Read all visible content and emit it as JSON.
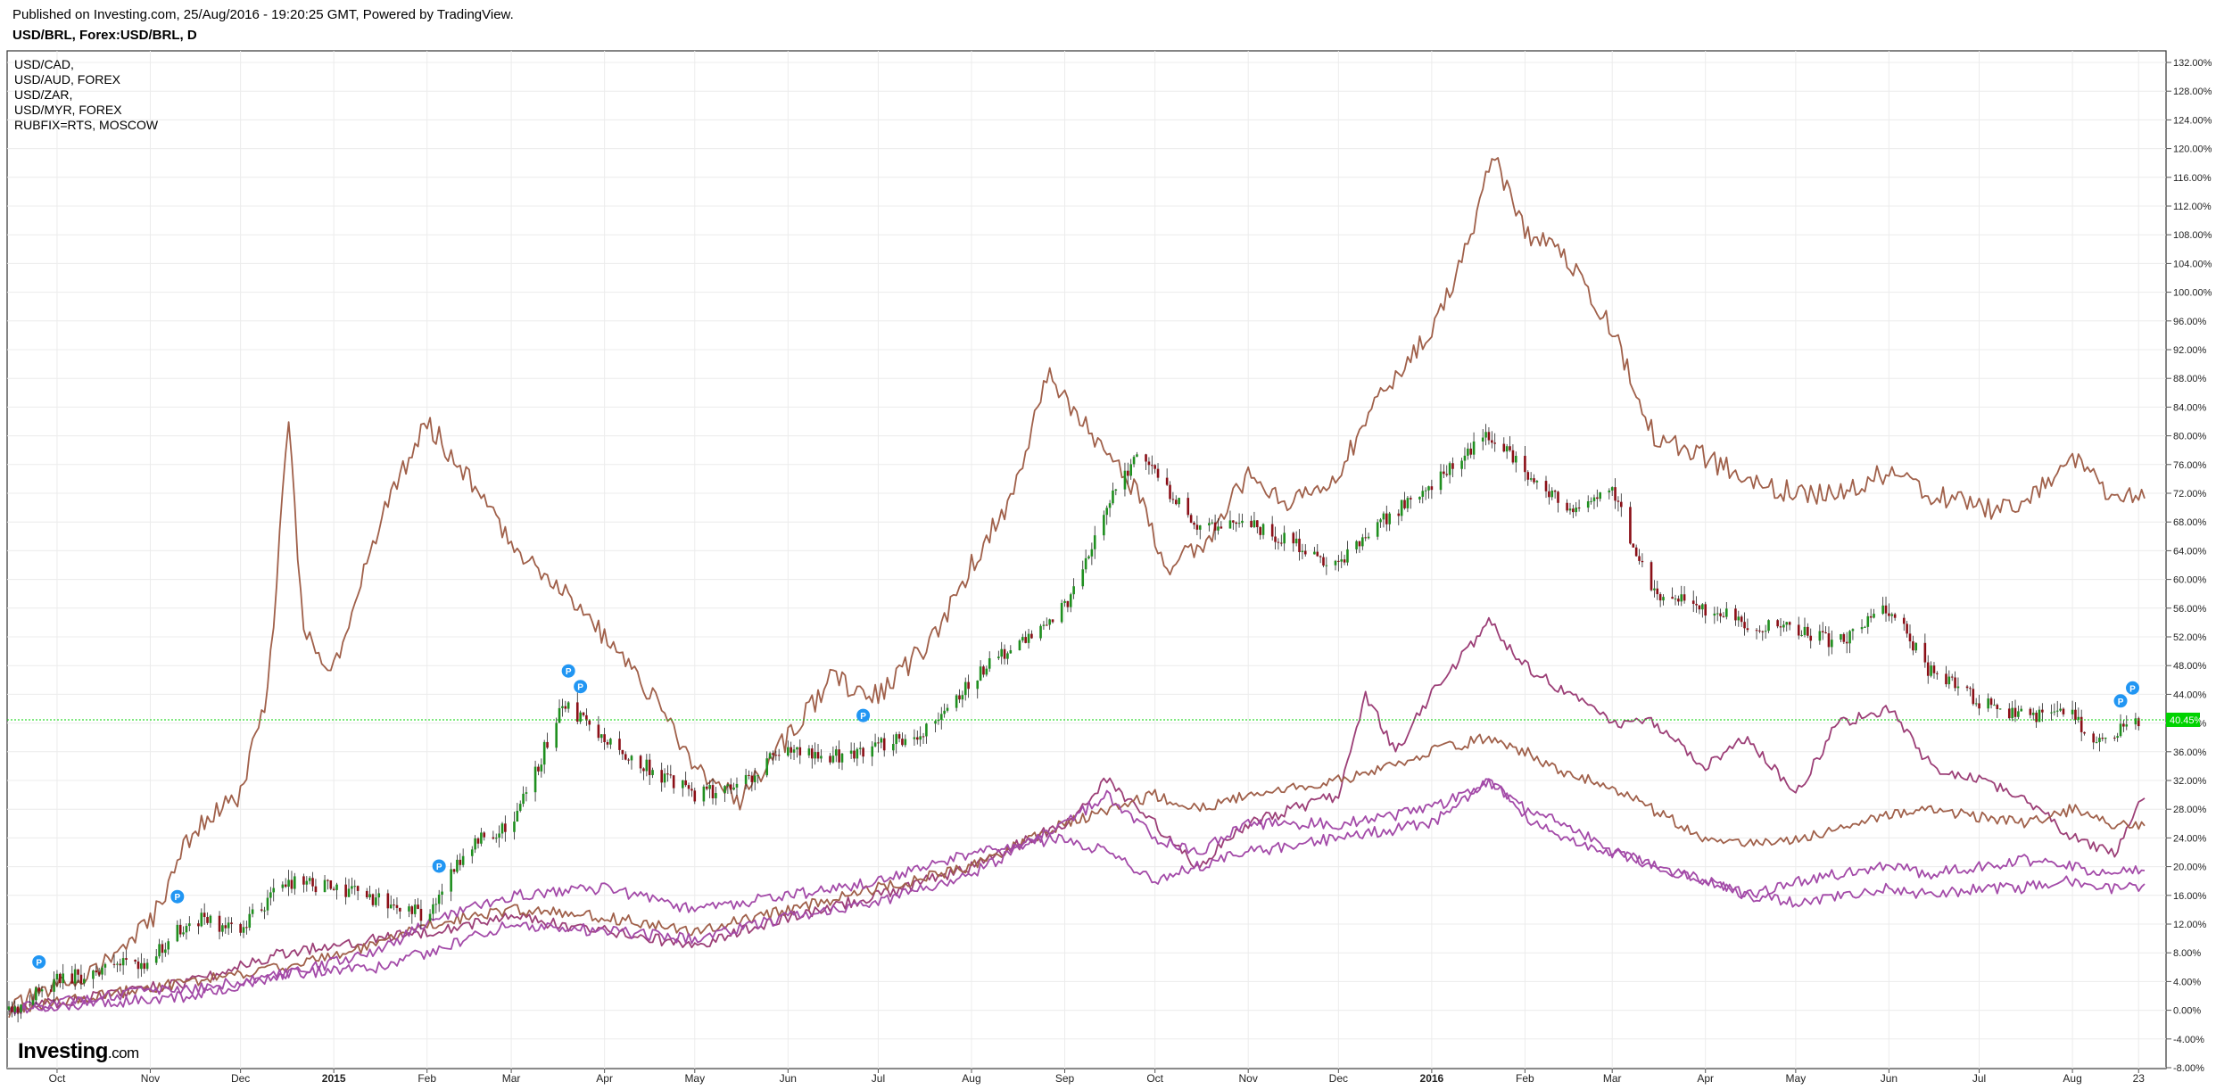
{
  "header": {
    "published": "Published on Investing.com, 25/Aug/2016 - 19:20:25 GMT, Powered by TradingView.",
    "symbol": "USD/BRL, Forex:USD/BRL, D"
  },
  "legend": [
    "USD/CAD,",
    "USD/AUD, FOREX",
    "USD/ZAR,",
    "USD/MYR, FOREX",
    "RUBFIX=RTS, MOSCOW"
  ],
  "logo": {
    "brand": "Investing",
    "suffix": ".com"
  },
  "markers": {
    "label": "P"
  },
  "price_label": "40.45%",
  "colors": {
    "brown": "#a0604a",
    "plum": "#9c3f77",
    "purple": "#a34aa8",
    "up": "#1f8f1f",
    "down": "#8b0f17",
    "current": "#00d300",
    "marker": "#2196f3"
  },
  "chart_data": {
    "type": "line",
    "title": "USD/BRL, Forex:USD/BRL, D",
    "y_axis": {
      "unit": "%",
      "min": -8,
      "max": 132,
      "step": 4,
      "tick_labels": [
        "132.00%",
        "128.00%",
        "124.00%",
        "120.00%",
        "116.00%",
        "112.00%",
        "108.00%",
        "104.00%",
        "100.00%",
        "96.00%",
        "92.00%",
        "88.00%",
        "84.00%",
        "80.00%",
        "76.00%",
        "72.00%",
        "68.00%",
        "64.00%",
        "60.00%",
        "56.00%",
        "52.00%",
        "48.00%",
        "44.00%",
        "40.00%",
        "36.00%",
        "32.00%",
        "28.00%",
        "24.00%",
        "20.00%",
        "16.00%",
        "12.00%",
        "8.00%",
        "4.00%",
        "0.00%",
        "-4.00%",
        "-8.00%"
      ]
    },
    "x_axis": {
      "start": "2014-09-15",
      "end": "2016-08-25",
      "tick_labels": [
        {
          "label": "Oct",
          "date": "2014-10-01"
        },
        {
          "label": "Nov",
          "date": "2014-11-01"
        },
        {
          "label": "Dec",
          "date": "2014-12-01"
        },
        {
          "label": "2015",
          "date": "2015-01-01",
          "bold": true
        },
        {
          "label": "Feb",
          "date": "2015-02-01"
        },
        {
          "label": "Mar",
          "date": "2015-03-01"
        },
        {
          "label": "Apr",
          "date": "2015-04-01"
        },
        {
          "label": "May",
          "date": "2015-05-01"
        },
        {
          "label": "Jun",
          "date": "2015-06-01"
        },
        {
          "label": "Jul",
          "date": "2015-07-01"
        },
        {
          "label": "Aug",
          "date": "2015-08-01"
        },
        {
          "label": "Sep",
          "date": "2015-09-01"
        },
        {
          "label": "Oct",
          "date": "2015-10-01"
        },
        {
          "label": "Nov",
          "date": "2015-11-01"
        },
        {
          "label": "Dec",
          "date": "2015-12-01"
        },
        {
          "label": "2016",
          "date": "2016-01-01",
          "bold": true
        },
        {
          "label": "Feb",
          "date": "2016-02-01"
        },
        {
          "label": "Mar",
          "date": "2016-03-01"
        },
        {
          "label": "Apr",
          "date": "2016-04-01"
        },
        {
          "label": "May",
          "date": "2016-05-01"
        },
        {
          "label": "Jun",
          "date": "2016-06-01"
        },
        {
          "label": "Jul",
          "date": "2016-07-01"
        },
        {
          "label": "Aug",
          "date": "2016-08-01"
        },
        {
          "label": "23",
          "date": "2016-08-23"
        }
      ]
    },
    "grid": true,
    "current_value": 40.45,
    "main_series": {
      "name": "USD/BRL",
      "style": "candlestick",
      "points": [
        [
          "2014-09-15",
          0
        ],
        [
          "2014-10-01",
          4
        ],
        [
          "2014-10-20",
          6
        ],
        [
          "2014-11-01",
          7
        ],
        [
          "2014-11-15",
          13
        ],
        [
          "2014-12-01",
          11
        ],
        [
          "2014-12-15",
          18
        ],
        [
          "2015-01-01",
          17
        ],
        [
          "2015-01-20",
          15
        ],
        [
          "2015-02-01",
          13
        ],
        [
          "2015-02-15",
          23
        ],
        [
          "2015-03-01",
          26
        ],
        [
          "2015-03-10",
          34
        ],
        [
          "2015-03-18",
          43
        ],
        [
          "2015-04-01",
          38
        ],
        [
          "2015-04-15",
          34
        ],
        [
          "2015-05-01",
          30
        ],
        [
          "2015-05-15",
          31
        ],
        [
          "2015-06-01",
          37
        ],
        [
          "2015-06-20",
          35
        ],
        [
          "2015-07-01",
          37
        ],
        [
          "2015-07-15",
          38
        ],
        [
          "2015-08-01",
          46
        ],
        [
          "2015-08-15",
          51
        ],
        [
          "2015-09-01",
          56
        ],
        [
          "2015-09-15",
          70
        ],
        [
          "2015-09-25",
          77
        ],
        [
          "2015-10-01",
          75
        ],
        [
          "2015-10-15",
          67
        ],
        [
          "2015-11-01",
          68
        ],
        [
          "2015-11-15",
          65
        ],
        [
          "2015-12-01",
          62
        ],
        [
          "2015-12-15",
          68
        ],
        [
          "2016-01-01",
          73
        ],
        [
          "2016-01-20",
          80
        ],
        [
          "2016-02-01",
          75
        ],
        [
          "2016-02-15",
          70
        ],
        [
          "2016-03-01",
          72
        ],
        [
          "2016-03-15",
          58
        ],
        [
          "2016-04-01",
          56
        ],
        [
          "2016-04-15",
          54
        ],
        [
          "2016-05-01",
          53
        ],
        [
          "2016-05-15",
          51
        ],
        [
          "2016-06-01",
          56
        ],
        [
          "2016-06-15",
          47
        ],
        [
          "2016-07-01",
          43
        ],
        [
          "2016-07-15",
          41
        ],
        [
          "2016-08-01",
          41
        ],
        [
          "2016-08-10",
          37
        ],
        [
          "2016-08-23",
          40.45
        ]
      ]
    },
    "series": [
      {
        "name": "RUBFIX=RTS, MOSCOW",
        "color": "brown",
        "values": [
          [
            "2014-09-15",
            0
          ],
          [
            "2014-10-15",
            6
          ],
          [
            "2014-11-01",
            12
          ],
          [
            "2014-11-15",
            25
          ],
          [
            "2014-12-01",
            30
          ],
          [
            "2014-12-10",
            44
          ],
          [
            "2014-12-17",
            82
          ],
          [
            "2014-12-22",
            52
          ],
          [
            "2015-01-01",
            48
          ],
          [
            "2015-01-20",
            72
          ],
          [
            "2015-02-01",
            82
          ],
          [
            "2015-02-15",
            74
          ],
          [
            "2015-03-01",
            65
          ],
          [
            "2015-03-20",
            58
          ],
          [
            "2015-04-01",
            52
          ],
          [
            "2015-04-20",
            42
          ],
          [
            "2015-05-01",
            34
          ],
          [
            "2015-05-15",
            29
          ],
          [
            "2015-06-01",
            38
          ],
          [
            "2015-06-15",
            46
          ],
          [
            "2015-07-01",
            44
          ],
          [
            "2015-07-20",
            52
          ],
          [
            "2015-08-01",
            62
          ],
          [
            "2015-08-15",
            72
          ],
          [
            "2015-08-26",
            89
          ],
          [
            "2015-09-10",
            80
          ],
          [
            "2015-09-25",
            72
          ],
          [
            "2015-10-05",
            62
          ],
          [
            "2015-10-20",
            66
          ],
          [
            "2015-11-01",
            75
          ],
          [
            "2015-11-15",
            70
          ],
          [
            "2015-12-01",
            75
          ],
          [
            "2015-12-15",
            86
          ],
          [
            "2016-01-01",
            95
          ],
          [
            "2016-01-15",
            108
          ],
          [
            "2016-01-21",
            120
          ],
          [
            "2016-02-01",
            108
          ],
          [
            "2016-02-15",
            105
          ],
          [
            "2016-03-01",
            95
          ],
          [
            "2016-03-15",
            80
          ],
          [
            "2016-04-01",
            77
          ],
          [
            "2016-04-15",
            74
          ],
          [
            "2016-05-01",
            72
          ],
          [
            "2016-05-15",
            72
          ],
          [
            "2016-06-01",
            75
          ],
          [
            "2016-06-15",
            72
          ],
          [
            "2016-07-01",
            70
          ],
          [
            "2016-07-15",
            70
          ],
          [
            "2016-08-01",
            77
          ],
          [
            "2016-08-15",
            71
          ],
          [
            "2016-08-25",
            72
          ]
        ]
      },
      {
        "name": "USD/ZAR",
        "color": "plum",
        "values": [
          [
            "2014-09-15",
            0
          ],
          [
            "2014-10-15",
            2
          ],
          [
            "2014-11-15",
            4
          ],
          [
            "2014-12-15",
            8
          ],
          [
            "2015-01-15",
            10
          ],
          [
            "2015-02-01",
            11
          ],
          [
            "2015-03-01",
            13
          ],
          [
            "2015-04-01",
            11
          ],
          [
            "2015-05-01",
            9
          ],
          [
            "2015-06-01",
            13
          ],
          [
            "2015-07-01",
            16
          ],
          [
            "2015-08-01",
            20
          ],
          [
            "2015-09-01",
            26
          ],
          [
            "2015-09-15",
            32
          ],
          [
            "2015-10-01",
            26
          ],
          [
            "2015-10-15",
            20
          ],
          [
            "2015-11-01",
            26
          ],
          [
            "2015-12-01",
            30
          ],
          [
            "2015-12-10",
            44
          ],
          [
            "2015-12-20",
            36
          ],
          [
            "2016-01-01",
            44
          ],
          [
            "2016-01-20",
            54
          ],
          [
            "2016-02-01",
            48
          ],
          [
            "2016-02-15",
            44
          ],
          [
            "2016-03-01",
            40
          ],
          [
            "2016-03-15",
            40
          ],
          [
            "2016-04-01",
            34
          ],
          [
            "2016-04-15",
            38
          ],
          [
            "2016-05-01",
            30
          ],
          [
            "2016-05-15",
            40
          ],
          [
            "2016-06-01",
            42
          ],
          [
            "2016-06-15",
            34
          ],
          [
            "2016-07-01",
            32
          ],
          [
            "2016-07-15",
            30
          ],
          [
            "2016-08-01",
            24
          ],
          [
            "2016-08-15",
            22
          ],
          [
            "2016-08-25",
            30
          ]
        ]
      },
      {
        "name": "USD/CAD",
        "color": "brown",
        "values": [
          [
            "2014-09-15",
            0
          ],
          [
            "2014-10-15",
            2
          ],
          [
            "2014-11-15",
            4
          ],
          [
            "2014-12-15",
            6
          ],
          [
            "2015-01-15",
            9
          ],
          [
            "2015-02-01",
            12
          ],
          [
            "2015-03-01",
            14
          ],
          [
            "2015-04-01",
            13
          ],
          [
            "2015-05-01",
            11
          ],
          [
            "2015-06-01",
            14
          ],
          [
            "2015-07-01",
            17
          ],
          [
            "2015-08-01",
            20
          ],
          [
            "2015-09-01",
            26
          ],
          [
            "2015-10-01",
            30
          ],
          [
            "2015-10-15",
            28
          ],
          [
            "2015-11-01",
            30
          ],
          [
            "2015-12-01",
            32
          ],
          [
            "2016-01-01",
            36
          ],
          [
            "2016-01-20",
            38
          ],
          [
            "2016-02-01",
            36
          ],
          [
            "2016-02-15",
            33
          ],
          [
            "2016-03-01",
            31
          ],
          [
            "2016-04-01",
            24
          ],
          [
            "2016-04-15",
            23
          ],
          [
            "2016-05-01",
            24
          ],
          [
            "2016-06-01",
            27
          ],
          [
            "2016-06-15",
            28
          ],
          [
            "2016-07-01",
            27
          ],
          [
            "2016-07-15",
            26
          ],
          [
            "2016-08-01",
            28
          ],
          [
            "2016-08-15",
            26
          ],
          [
            "2016-08-25",
            26
          ]
        ]
      },
      {
        "name": "USD/MYR, FOREX",
        "color": "purple",
        "values": [
          [
            "2014-09-15",
            0
          ],
          [
            "2014-10-15",
            2
          ],
          [
            "2014-11-15",
            3
          ],
          [
            "2014-12-15",
            5
          ],
          [
            "2015-01-15",
            6
          ],
          [
            "2015-02-01",
            8
          ],
          [
            "2015-03-01",
            12
          ],
          [
            "2015-04-01",
            11
          ],
          [
            "2015-05-01",
            10
          ],
          [
            "2015-06-01",
            13
          ],
          [
            "2015-07-01",
            15
          ],
          [
            "2015-08-01",
            19
          ],
          [
            "2015-09-01",
            26
          ],
          [
            "2015-09-15",
            30
          ],
          [
            "2015-10-01",
            24
          ],
          [
            "2015-10-15",
            22
          ],
          [
            "2015-11-01",
            26
          ],
          [
            "2015-12-01",
            26
          ],
          [
            "2016-01-01",
            28
          ],
          [
            "2016-01-20",
            32
          ],
          [
            "2016-02-01",
            28
          ],
          [
            "2016-02-15",
            26
          ],
          [
            "2016-03-01",
            22
          ],
          [
            "2016-04-01",
            18
          ],
          [
            "2016-04-15",
            16
          ],
          [
            "2016-05-01",
            18
          ],
          [
            "2016-06-01",
            20
          ],
          [
            "2016-06-15",
            19
          ],
          [
            "2016-07-01",
            20
          ],
          [
            "2016-07-15",
            21
          ],
          [
            "2016-08-01",
            20
          ],
          [
            "2016-08-15",
            19
          ],
          [
            "2016-08-25",
            19.5
          ]
        ]
      },
      {
        "name": "USD/AUD, FOREX",
        "color": "purple",
        "values": [
          [
            "2014-09-15",
            0
          ],
          [
            "2014-10-15",
            1
          ],
          [
            "2014-11-15",
            2
          ],
          [
            "2014-12-15",
            5
          ],
          [
            "2015-01-15",
            8
          ],
          [
            "2015-02-01",
            12
          ],
          [
            "2015-03-01",
            16
          ],
          [
            "2015-04-01",
            17
          ],
          [
            "2015-05-01",
            14
          ],
          [
            "2015-06-01",
            16
          ],
          [
            "2015-07-01",
            18
          ],
          [
            "2015-08-01",
            22
          ],
          [
            "2015-09-01",
            24
          ],
          [
            "2015-09-15",
            22
          ],
          [
            "2015-10-01",
            18
          ],
          [
            "2015-10-15",
            20
          ],
          [
            "2015-11-01",
            22
          ],
          [
            "2015-12-01",
            24
          ],
          [
            "2016-01-01",
            26
          ],
          [
            "2016-01-20",
            32
          ],
          [
            "2016-02-01",
            27
          ],
          [
            "2016-02-15",
            24
          ],
          [
            "2016-03-01",
            22
          ],
          [
            "2016-04-01",
            18
          ],
          [
            "2016-04-15",
            16
          ],
          [
            "2016-05-01",
            15
          ],
          [
            "2016-06-01",
            17
          ],
          [
            "2016-06-15",
            16
          ],
          [
            "2016-07-01",
            17
          ],
          [
            "2016-07-15",
            17
          ],
          [
            "2016-08-01",
            18
          ],
          [
            "2016-08-15",
            17
          ],
          [
            "2016-08-25",
            17
          ]
        ]
      }
    ],
    "event_markers": [
      "2014-09-25",
      "2014-11-10",
      "2015-02-05",
      "2015-03-20",
      "2015-03-24",
      "2015-06-26",
      "2016-08-17",
      "2016-08-21"
    ]
  }
}
